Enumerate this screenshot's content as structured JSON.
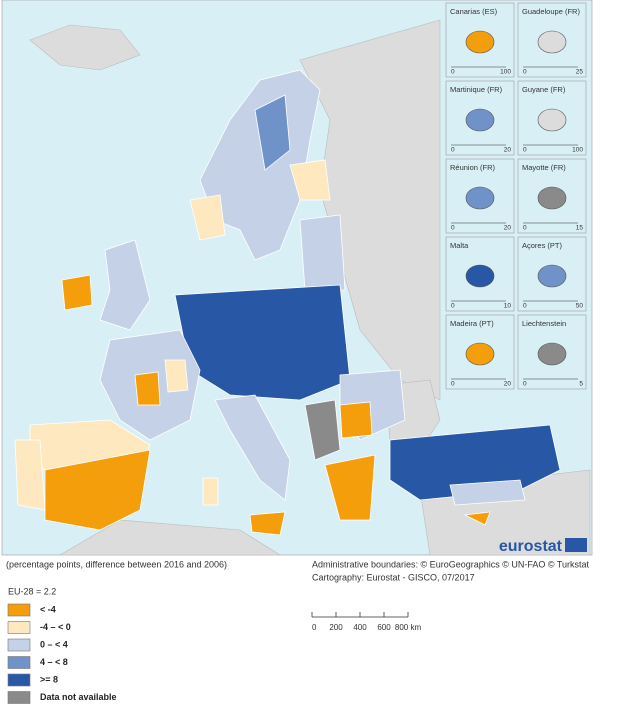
{
  "insets": [
    {
      "label": "Canarias (ES)",
      "scale": [
        "0",
        "100"
      ]
    },
    {
      "label": "Guadeloupe (FR)",
      "scale": [
        "0",
        "25"
      ]
    },
    {
      "label": "Martinique (FR)",
      "scale": [
        "0",
        "20"
      ]
    },
    {
      "label": "Guyane (FR)",
      "scale": [
        "0",
        "100"
      ]
    },
    {
      "label": "Réunion (FR)",
      "scale": [
        "0",
        "20"
      ]
    },
    {
      "label": "Mayotte (FR)",
      "scale": [
        "0",
        "15"
      ]
    },
    {
      "label": "Malta",
      "scale": [
        "0",
        "10"
      ]
    },
    {
      "label": "Açores (PT)",
      "scale": [
        "0",
        "50"
      ]
    },
    {
      "label": "Madeira (PT)",
      "scale": [
        "0",
        "20"
      ]
    },
    {
      "label": "Liechtenstein",
      "scale": [
        "0",
        "5"
      ]
    }
  ],
  "logo": "eurostat",
  "unit_note": "(percentage points, difference between 2016 and 2006)",
  "credits": [
    "Administrative boundaries: © EuroGeographics © UN-FAO © Turkstat",
    "Cartography: Eurostat - GISCO, 07/2017"
  ],
  "eu_average": "EU-28 = 2.2",
  "legend": [
    {
      "label": "< -4",
      "color": "#f59e0b"
    },
    {
      "label": "-4 – < 0",
      "color": "#fde8bf"
    },
    {
      "label": "0 – < 4",
      "color": "#c5d1e7"
    },
    {
      "label": "4 – < 8",
      "color": "#6f92c8"
    },
    {
      "label": ">= 8",
      "color": "#2857a6"
    },
    {
      "label": "Data not available",
      "color": "#8a8a8a"
    }
  ],
  "scale_bar": [
    "0",
    "200",
    "400",
    "600",
    "800 km"
  ]
}
